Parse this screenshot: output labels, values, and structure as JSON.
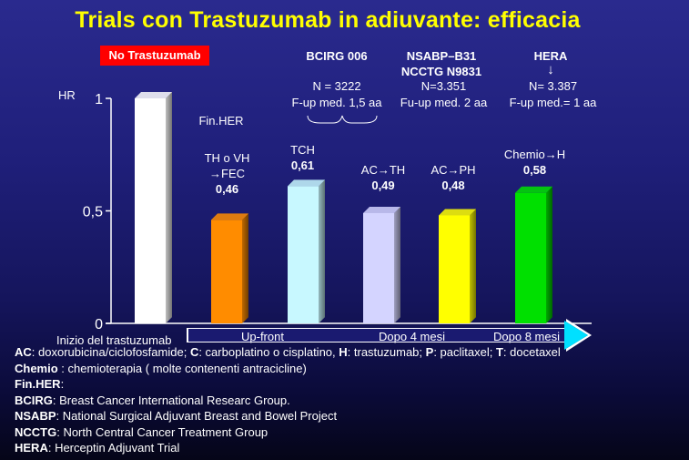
{
  "title": "Trials con Trastuzumab in adiuvante: efficacia",
  "no_trastuzumab": "No Trastuzumab",
  "hr_label": "HR",
  "trials": {
    "bcirg": {
      "name": "BCIRG 006",
      "n": "N = 3222",
      "fup": "F-up med. 1,5 aa"
    },
    "nsabp": {
      "name": "NSABP–B31",
      "name2": "NCCTG N9831",
      "n": "N=3.351",
      "fup": "Fu-up med. 2 aa"
    },
    "hera": {
      "name": "HERA",
      "arrow": "↓",
      "n": "N= 3.387",
      "fup": "F-up med.= 1 aa"
    }
  },
  "finher": "Fin.HER",
  "bar_labels": [
    {
      "line1": "TH o VH",
      "line2": "→FEC",
      "value": "0,46"
    },
    {
      "line1": "TCH",
      "line2": "",
      "value": "0,61"
    },
    {
      "line1": "AC→TH",
      "line2": "",
      "value": "0,49"
    },
    {
      "line1": "AC→PH",
      "line2": "",
      "value": "0,48"
    },
    {
      "line1": "Chemio→H",
      "line2": "",
      "value": "0,58"
    }
  ],
  "chart_data": {
    "type": "bar",
    "categories": [
      "No Trastuzumab",
      "Fin.HER",
      "BCIRG 006",
      "NSABP–B31 / NCCTG N9831 AC→TH",
      "NSABP–B31 / NCCTG N9831 AC→PH",
      "HERA"
    ],
    "values": [
      1,
      0.46,
      0.61,
      0.49,
      0.48,
      0.58
    ],
    "colors": [
      "#ffffff",
      "#ff8c00",
      "#c8f8ff",
      "#d4d4ff",
      "#ffff00",
      "#00e000"
    ],
    "ylabel": "HR",
    "yticks": [
      "0",
      "0,5",
      "1"
    ],
    "ylim": [
      0,
      1
    ],
    "grid": false
  },
  "timeline": {
    "start": "Inizio del trastuzumab",
    "upfront": "Up-front",
    "dopo4": "Dopo 4 mesi",
    "dopo8": "Dopo 8 mesi"
  },
  "legend": {
    "l1_ac": "AC",
    "l1_ac_txt": ": doxorubicina/ciclofosfamide; ",
    "l1_c": "C",
    "l1_c_txt": ": carboplatino o cisplatino, ",
    "l1_h": "H",
    "l1_h_txt": ": trastuzumab; ",
    "l1_p": "P",
    "l1_p_txt": ": paclitaxel; ",
    "l1_t": "T",
    "l1_t_txt": ": docetaxel",
    "l2_k": "Chemio",
    "l2_v": " : chemioterapia ( molte contenenti antracicline)",
    "l3_k": "Fin.HER",
    "l3_v": ":",
    "l4_k": "BCIRG",
    "l4_v": ": Breast Cancer International Researc Group.",
    "l5_k": "NSABP",
    "l5_v": ": National Surgical Adjuvant Breast and Bowel Project",
    "l6_k": "NCCTG",
    "l6_v": ": North Central Cancer Treatment Group",
    "l7_k": "HERA",
    "l7_v": ": Herceptin Adjuvant Trial"
  }
}
